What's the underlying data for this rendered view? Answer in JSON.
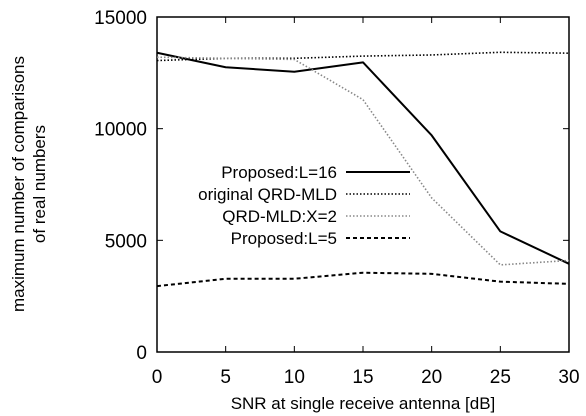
{
  "chart_data": {
    "type": "line",
    "xlabel": "SNR at single receive antenna [dB]",
    "ylabel_lines": [
      "maximum number of comparisons",
      "of real numbers"
    ],
    "xlim": [
      0,
      30
    ],
    "ylim": [
      0,
      15000
    ],
    "x_ticks": [
      0,
      5,
      10,
      15,
      20,
      25,
      30
    ],
    "y_ticks": [
      0,
      5000,
      10000,
      15000
    ],
    "grid": false,
    "legend_position": "center-left",
    "series": [
      {
        "name": "Proposed:L=16",
        "style": "solid",
        "color": "#000000",
        "x": [
          0,
          5,
          10,
          15,
          20,
          25,
          30
        ],
        "y": [
          13400,
          12750,
          12550,
          12970,
          9700,
          5400,
          3950
        ]
      },
      {
        "name": "original QRD-MLD",
        "style": "dotted",
        "color": "#000000",
        "x": [
          0,
          5,
          10,
          15,
          20,
          25,
          30
        ],
        "y": [
          13050,
          13150,
          13150,
          13250,
          13300,
          13420,
          13380
        ]
      },
      {
        "name": "QRD-MLD:X=2",
        "style": "dotted-gray",
        "color": "#888888",
        "x": [
          0,
          5,
          10,
          15,
          20,
          25,
          30
        ],
        "y": [
          13200,
          13150,
          13100,
          11300,
          6900,
          3900,
          4100
        ]
      },
      {
        "name": "Proposed:L=5",
        "style": "dashed",
        "color": "#000000",
        "x": [
          0,
          5,
          10,
          15,
          20,
          25,
          30
        ],
        "y": [
          2950,
          3280,
          3280,
          3550,
          3500,
          3150,
          3050
        ]
      }
    ]
  }
}
